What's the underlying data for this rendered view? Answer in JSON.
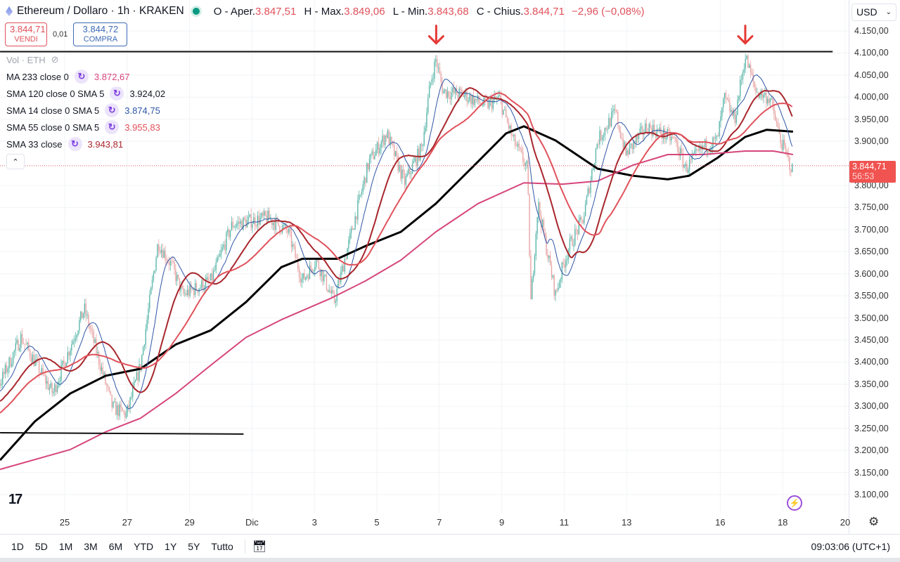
{
  "header": {
    "symbol": "Ethereum / Dollaro · 1h · KRAKEN",
    "open_label": "O - Aper.",
    "open": "3.847,51",
    "high_label": "H - Max.",
    "high": "3.849,06",
    "low_label": "L - Min.",
    "low": "3.843,68",
    "close_label": "C - Chius.",
    "close": "3.844,71",
    "change": "−2,96 (−0,08%)"
  },
  "trade": {
    "sell_price": "3.844,71",
    "sell_label": "VENDI",
    "spread": "0,01",
    "buy_price": "3.844,72",
    "buy_label": "COMPRA"
  },
  "legend": {
    "vol": "Vol · ETH",
    "items": [
      {
        "name": "MA 233 close 0",
        "value": "3.872,67",
        "color": "#d6457a"
      },
      {
        "name": "SMA 120 close 0 SMA 5",
        "value": "3.924,02",
        "color": "#131722"
      },
      {
        "name": "SMA 14 close 0 SMA 5",
        "value": "3.874,75",
        "color": "#2f56a6"
      },
      {
        "name": "SMA 55 close 0 SMA 5",
        "value": "3.955,83",
        "color": "#e0525b"
      },
      {
        "name": "SMA 33 close",
        "value": "3.943,81",
        "color": "#a8262c"
      }
    ]
  },
  "currency": "USD",
  "current_price": {
    "price": "3.844,71",
    "countdown": "56:53",
    "value": 3844.71
  },
  "ranges": [
    "1D",
    "5D",
    "1M",
    "3M",
    "6M",
    "YTD",
    "1Y",
    "5Y",
    "Tutto"
  ],
  "clock": "09:03:06 (UTC+1)",
  "chart_data": {
    "type": "candlestick",
    "title": "Ethereum / Dollaro · 1h · KRAKEN",
    "ylim": [
      3100,
      4150
    ],
    "xlim": [
      22.93,
      48.9
    ],
    "yticks": [
      {
        "v": 4150,
        "label": "4.150,00"
      },
      {
        "v": 4100,
        "label": "4.100,00"
      },
      {
        "v": 4050,
        "label": "4.050,00"
      },
      {
        "v": 4000,
        "label": "4.000,00"
      },
      {
        "v": 3950,
        "label": "3.950,00"
      },
      {
        "v": 3900,
        "label": "3.900,00"
      },
      {
        "v": 3800,
        "label": "3.800,00"
      },
      {
        "v": 3750,
        "label": "3.750,00"
      },
      {
        "v": 3700,
        "label": "3.700,00"
      },
      {
        "v": 3650,
        "label": "3.650,00"
      },
      {
        "v": 3600,
        "label": "3.600,00"
      },
      {
        "v": 3550,
        "label": "3.550,00"
      },
      {
        "v": 3500,
        "label": "3.500,00"
      },
      {
        "v": 3450,
        "label": "3.450,00"
      },
      {
        "v": 3400,
        "label": "3.400,00"
      },
      {
        "v": 3350,
        "label": "3.350,00"
      },
      {
        "v": 3300,
        "label": "3.300,00"
      },
      {
        "v": 3250,
        "label": "3.250,00"
      },
      {
        "v": 3200,
        "label": "3.200,00"
      },
      {
        "v": 3150,
        "label": "3.150,00"
      },
      {
        "v": 3100,
        "label": "3.100,00"
      }
    ],
    "xticks": [
      {
        "d": 25,
        "label": "25"
      },
      {
        "d": 27,
        "label": "27"
      },
      {
        "d": 29,
        "label": "29"
      },
      {
        "d": 31,
        "label": "Dic"
      },
      {
        "d": 33,
        "label": "3"
      },
      {
        "d": 35,
        "label": "5"
      },
      {
        "d": 37,
        "label": "7"
      },
      {
        "d": 39,
        "label": "9"
      },
      {
        "d": 41,
        "label": "11"
      },
      {
        "d": 43,
        "label": "13"
      },
      {
        "d": 46,
        "label": "16"
      },
      {
        "d": 48,
        "label": "18"
      },
      {
        "d": 50,
        "label": "20"
      }
    ],
    "price_path": [
      [
        22.93,
        3353
      ],
      [
        23.6,
        3456
      ],
      [
        24.62,
        3329
      ],
      [
        25.63,
        3520
      ],
      [
        26.53,
        3297
      ],
      [
        26.98,
        3281
      ],
      [
        27.43,
        3393
      ],
      [
        27.99,
        3671
      ],
      [
        28.45,
        3615
      ],
      [
        28.78,
        3552
      ],
      [
        29.68,
        3584
      ],
      [
        30.36,
        3711
      ],
      [
        31.49,
        3727
      ],
      [
        32.16,
        3695
      ],
      [
        32.61,
        3584
      ],
      [
        33.06,
        3631
      ],
      [
        33.63,
        3536
      ],
      [
        34.19,
        3695
      ],
      [
        34.75,
        3854
      ],
      [
        35.32,
        3918
      ],
      [
        35.88,
        3806
      ],
      [
        36.44,
        3886
      ],
      [
        36.71,
        4029
      ],
      [
        36.89,
        4085
      ],
      [
        37.12,
        4013
      ],
      [
        37.79,
        4005
      ],
      [
        38.47,
        3981
      ],
      [
        38.92,
        3997
      ],
      [
        39.37,
        3902
      ],
      [
        39.82,
        3838
      ],
      [
        39.93,
        3536
      ],
      [
        40.16,
        3759
      ],
      [
        40.72,
        3552
      ],
      [
        40.95,
        3615
      ],
      [
        41.17,
        3663
      ],
      [
        41.62,
        3727
      ],
      [
        42.07,
        3902
      ],
      [
        42.64,
        3966
      ],
      [
        42.97,
        3870
      ],
      [
        43.65,
        3934
      ],
      [
        44.55,
        3902
      ],
      [
        44.89,
        3838
      ],
      [
        45.45,
        3886
      ],
      [
        45.9,
        3902
      ],
      [
        46.13,
        3997
      ],
      [
        46.46,
        3950
      ],
      [
        46.8,
        4093
      ],
      [
        47.14,
        4013
      ],
      [
        47.59,
        3997
      ],
      [
        47.93,
        3902
      ],
      [
        48.33,
        3830
      ]
    ],
    "ma_lines": [
      {
        "name": "SMA 120",
        "color": "#000000",
        "width": 3,
        "points": [
          [
            22.93,
            3178
          ],
          [
            24.05,
            3266
          ],
          [
            25.18,
            3329
          ],
          [
            26.31,
            3369
          ],
          [
            27.43,
            3385
          ],
          [
            28.56,
            3440
          ],
          [
            29.68,
            3472
          ],
          [
            30.81,
            3536
          ],
          [
            31.94,
            3615
          ],
          [
            32.61,
            3634
          ],
          [
            33.74,
            3634
          ],
          [
            34.64,
            3663
          ],
          [
            35.77,
            3695
          ],
          [
            36.89,
            3759
          ],
          [
            38.24,
            3854
          ],
          [
            39.14,
            3918
          ],
          [
            39.71,
            3934
          ],
          [
            40.72,
            3902
          ],
          [
            42.07,
            3838
          ],
          [
            43.2,
            3822
          ],
          [
            44.32,
            3814
          ],
          [
            45.0,
            3822
          ],
          [
            45.9,
            3862
          ],
          [
            46.8,
            3910
          ],
          [
            47.48,
            3926
          ],
          [
            48.33,
            3922
          ]
        ]
      },
      {
        "name": "MA 233",
        "color": "#d6457a",
        "width": 2,
        "points": [
          [
            22.93,
            3157
          ],
          [
            25.18,
            3202
          ],
          [
            26.31,
            3242
          ],
          [
            27.43,
            3273
          ],
          [
            28.56,
            3329
          ],
          [
            29.68,
            3393
          ],
          [
            30.81,
            3456
          ],
          [
            31.94,
            3496
          ],
          [
            33.51,
            3544
          ],
          [
            34.64,
            3584
          ],
          [
            35.77,
            3631
          ],
          [
            36.89,
            3695
          ],
          [
            38.24,
            3759
          ],
          [
            39.71,
            3806
          ],
          [
            40.95,
            3803
          ],
          [
            42.07,
            3810
          ],
          [
            43.2,
            3846
          ],
          [
            44.32,
            3870
          ],
          [
            45.45,
            3870
          ],
          [
            46.8,
            3878
          ],
          [
            47.7,
            3878
          ],
          [
            48.33,
            3870
          ]
        ]
      }
    ],
    "computed_sma": [
      {
        "name": "SMA 14",
        "period": 14,
        "color": "#2f56a6",
        "width": 1
      },
      {
        "name": "SMA 33",
        "period": 33,
        "color": "#a8262c",
        "width": 2
      },
      {
        "name": "SMA 55",
        "period": 55,
        "color": "#e0525b",
        "width": 2
      }
    ],
    "hlines": [
      {
        "price": 4103,
        "from": 22.93,
        "to": 49.6
      },
      {
        "price": 3240,
        "to_price": 3237,
        "from": 22.93,
        "to": 30.73
      }
    ],
    "arrows": [
      {
        "d": 36.9,
        "price": 4130
      },
      {
        "d": 46.8,
        "price": 4130
      }
    ],
    "colors": {
      "up": "#5bb7aa",
      "down": "#e8a3a3"
    }
  }
}
